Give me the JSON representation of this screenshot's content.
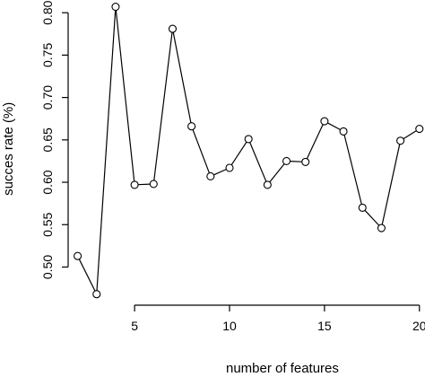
{
  "chart_data": {
    "type": "line",
    "title": "",
    "xlabel": "number of features",
    "ylabel": "succes rate (%)",
    "x": [
      2,
      3,
      4,
      5,
      6,
      7,
      8,
      9,
      10,
      11,
      12,
      13,
      14,
      15,
      16,
      17,
      18,
      19,
      20
    ],
    "series": [
      {
        "values": [
          0.513,
          0.468,
          0.807,
          0.597,
          0.598,
          0.781,
          0.666,
          0.607,
          0.617,
          0.651,
          0.597,
          0.625,
          0.624,
          0.672,
          0.66,
          0.57,
          0.546,
          0.649,
          0.663
        ],
        "marker": "open-circle",
        "color": "#000000"
      }
    ],
    "xlim": [
      1.5,
      20.2
    ],
    "ylim": [
      0.455,
      0.815
    ],
    "xticks": [
      5,
      10,
      15,
      20
    ],
    "yticks": [
      0.5,
      0.55,
      0.6,
      0.65,
      0.7,
      0.75,
      0.8
    ],
    "grid": false,
    "legend": "none"
  }
}
